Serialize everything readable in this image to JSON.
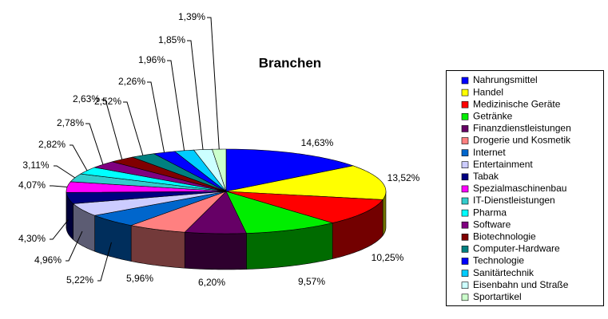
{
  "chart_data": {
    "type": "pie3d",
    "title": "Branchen",
    "categories": [
      "Nahrungsmittel",
      "Handel",
      "Medizinische Geräte",
      "Getränke",
      "Finanzdienstleistungen",
      "Drogerie und Kosmetik",
      "Internet",
      "Entertainment",
      "Tabak",
      "Spezialmaschinenbau",
      "IT-Dienstleistungen",
      "Pharma",
      "Software",
      "Biotechnologie",
      "Computer-Hardware",
      "Technologie",
      "Sanitärtechnik",
      "Eisenbahn und Straße",
      "Sportartikel"
    ],
    "values": [
      14.63,
      13.52,
      10.25,
      9.57,
      6.2,
      5.96,
      5.22,
      4.96,
      4.3,
      4.07,
      3.11,
      2.82,
      2.78,
      2.63,
      2.52,
      2.26,
      1.96,
      1.85,
      1.39
    ],
    "value_labels": [
      "14,63%",
      "13,52%",
      "10,25%",
      "9,57%",
      "6,20%",
      "5,96%",
      "5,22%",
      "4,96%",
      "4,30%",
      "4,07%",
      "3,11%",
      "2,82%",
      "2,78%",
      "2,63%",
      "2,52%",
      "2,26%",
      "1,96%",
      "1,85%",
      "1,39%"
    ],
    "colors": [
      "#0000ff",
      "#ffff00",
      "#ff0000",
      "#00ee00",
      "#660066",
      "#ff8080",
      "#0066cc",
      "#ccccff",
      "#000080",
      "#ff00ff",
      "#33cccc",
      "#00ffff",
      "#800080",
      "#800000",
      "#008080",
      "#0000ff",
      "#00ccff",
      "#ccffff",
      "#ccffcc"
    ],
    "legend_position": "right"
  }
}
